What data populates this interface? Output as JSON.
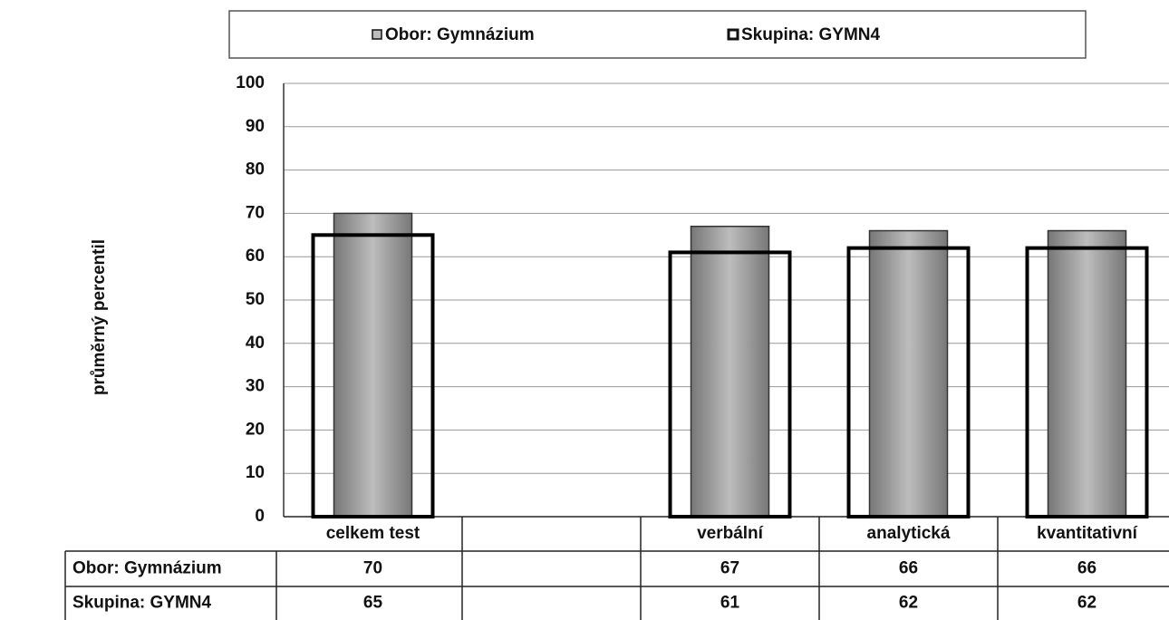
{
  "chart_data": {
    "type": "bar",
    "y_label": "průměrný percentil",
    "categories": [
      "celkem test",
      null,
      "verbální",
      "analytická",
      "kvantitativní"
    ],
    "series": [
      {
        "name": "Obor: Gymnázium",
        "color": "#bdbdbd",
        "values": [
          70,
          null,
          67,
          66,
          66
        ]
      },
      {
        "name": "Skupina: GYMN4",
        "color": "#ffffff",
        "values": [
          65,
          null,
          61,
          62,
          62
        ]
      }
    ],
    "ylim": [
      0,
      100
    ],
    "yticks": [
      0,
      10,
      20,
      30,
      40,
      50,
      60,
      70,
      80,
      90,
      100
    ],
    "grid": true,
    "legend": "top"
  }
}
